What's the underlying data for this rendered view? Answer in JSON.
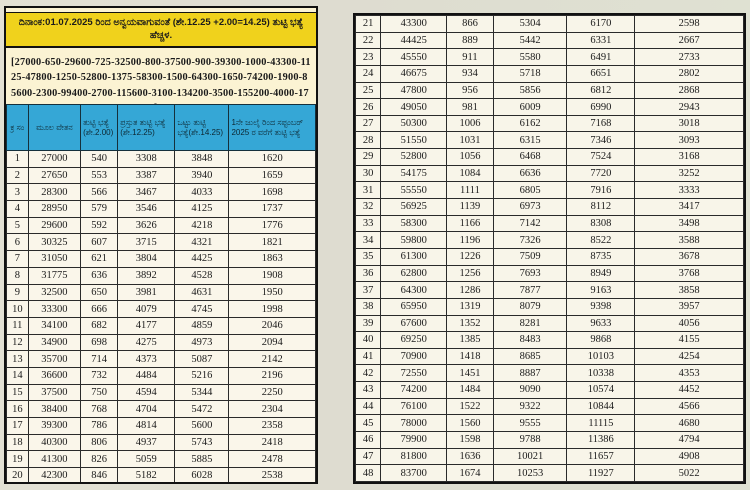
{
  "header": {
    "title": "ದಿನಾಂಕ:01.07.2025 ರಿಂದ ಅನ್ವಯವಾಗುವಂತೆ (ಶೇ.12.25 +2.00=14.25) ತುಟ್ಟಿ ಭತ್ಯೆ ಹೆಚ್ಚಳ.",
    "pay_scale": "[27000-650-29600-725-32500-800-37500-900-39300-1000-43300-1125-47800-1250-52800-1375-58300-1500-64300-1650-74200-1900-85600-2300-99400-2700-115600-3100-134200-3500-155200-4000-179200-4500-206200-5000-241200]"
  },
  "table": {
    "columns": [
      "ಕ್ರ ಸಂ",
      "ಮೂಲ ವೇತನ",
      "ತುಟ್ಟಿ ಭತ್ಯೆ (ಶೇ.2.00)",
      "ಪ್ರಸ್ತುತ ತುಟ್ಟಿ ಭತ್ಯೆ (ಶೇ.12.25)",
      "ಒಟ್ಟು ತುಟ್ಟಿ ಭತ್ಯೆ(ಶೇ.14.25)",
      "1ನೇ ಜುಲೈ ರಿಂದ ಸಪ್ಟಂಬರ್ 2025 ರ ವರೆಗೆ ತುಟ್ಟಿ ಭತ್ಯೆ"
    ],
    "rows": [
      [
        "1",
        "27000",
        "540",
        "3308",
        "3848",
        "1620"
      ],
      [
        "2",
        "27650",
        "553",
        "3387",
        "3940",
        "1659"
      ],
      [
        "3",
        "28300",
        "566",
        "3467",
        "4033",
        "1698"
      ],
      [
        "4",
        "28950",
        "579",
        "3546",
        "4125",
        "1737"
      ],
      [
        "5",
        "29600",
        "592",
        "3626",
        "4218",
        "1776"
      ],
      [
        "6",
        "30325",
        "607",
        "3715",
        "4321",
        "1821"
      ],
      [
        "7",
        "31050",
        "621",
        "3804",
        "4425",
        "1863"
      ],
      [
        "8",
        "31775",
        "636",
        "3892",
        "4528",
        "1908"
      ],
      [
        "9",
        "32500",
        "650",
        "3981",
        "4631",
        "1950"
      ],
      [
        "10",
        "33300",
        "666",
        "4079",
        "4745",
        "1998"
      ],
      [
        "11",
        "34100",
        "682",
        "4177",
        "4859",
        "2046"
      ],
      [
        "12",
        "34900",
        "698",
        "4275",
        "4973",
        "2094"
      ],
      [
        "13",
        "35700",
        "714",
        "4373",
        "5087",
        "2142"
      ],
      [
        "14",
        "36600",
        "732",
        "4484",
        "5216",
        "2196"
      ],
      [
        "15",
        "37500",
        "750",
        "4594",
        "5344",
        "2250"
      ],
      [
        "16",
        "38400",
        "768",
        "4704",
        "5472",
        "2304"
      ],
      [
        "17",
        "39300",
        "786",
        "4814",
        "5600",
        "2358"
      ],
      [
        "18",
        "40300",
        "806",
        "4937",
        "5743",
        "2418"
      ],
      [
        "19",
        "41300",
        "826",
        "5059",
        "5885",
        "2478"
      ],
      [
        "20",
        "42300",
        "846",
        "5182",
        "6028",
        "2538"
      ],
      [
        "21",
        "43300",
        "866",
        "5304",
        "6170",
        "2598"
      ],
      [
        "22",
        "44425",
        "889",
        "5442",
        "6331",
        "2667"
      ],
      [
        "23",
        "45550",
        "911",
        "5580",
        "6491",
        "2733"
      ],
      [
        "24",
        "46675",
        "934",
        "5718",
        "6651",
        "2802"
      ],
      [
        "25",
        "47800",
        "956",
        "5856",
        "6812",
        "2868"
      ],
      [
        "26",
        "49050",
        "981",
        "6009",
        "6990",
        "2943"
      ],
      [
        "27",
        "50300",
        "1006",
        "6162",
        "7168",
        "3018"
      ],
      [
        "28",
        "51550",
        "1031",
        "6315",
        "7346",
        "3093"
      ],
      [
        "29",
        "52800",
        "1056",
        "6468",
        "7524",
        "3168"
      ],
      [
        "30",
        "54175",
        "1084",
        "6636",
        "7720",
        "3252"
      ],
      [
        "31",
        "55550",
        "1111",
        "6805",
        "7916",
        "3333"
      ],
      [
        "32",
        "56925",
        "1139",
        "6973",
        "8112",
        "3417"
      ],
      [
        "33",
        "58300",
        "1166",
        "7142",
        "8308",
        "3498"
      ],
      [
        "34",
        "59800",
        "1196",
        "7326",
        "8522",
        "3588"
      ],
      [
        "35",
        "61300",
        "1226",
        "7509",
        "8735",
        "3678"
      ],
      [
        "36",
        "62800",
        "1256",
        "7693",
        "8949",
        "3768"
      ],
      [
        "37",
        "64300",
        "1286",
        "7877",
        "9163",
        "3858"
      ],
      [
        "38",
        "65950",
        "1319",
        "8079",
        "9398",
        "3957"
      ],
      [
        "39",
        "67600",
        "1352",
        "8281",
        "9633",
        "4056"
      ],
      [
        "40",
        "69250",
        "1385",
        "8483",
        "9868",
        "4155"
      ],
      [
        "41",
        "70900",
        "1418",
        "8685",
        "10103",
        "4254"
      ],
      [
        "42",
        "72550",
        "1451",
        "8887",
        "10338",
        "4353"
      ],
      [
        "43",
        "74200",
        "1484",
        "9090",
        "10574",
        "4452"
      ],
      [
        "44",
        "76100",
        "1522",
        "9322",
        "10844",
        "4566"
      ],
      [
        "45",
        "78000",
        "1560",
        "9555",
        "11115",
        "4680"
      ],
      [
        "46",
        "79900",
        "1598",
        "9788",
        "11386",
        "4794"
      ],
      [
        "47",
        "81800",
        "1636",
        "10021",
        "11657",
        "4908"
      ],
      [
        "48",
        "83700",
        "1674",
        "10253",
        "11927",
        "5022"
      ]
    ],
    "left_row_count": 20
  },
  "colors": {
    "band-yellow": "#f0d21c",
    "band-blue": "#35a7d6",
    "card-bg": "#fbf3d3",
    "cell-bg": "#f8f5e9",
    "paper": "#dedcd0",
    "ink": "#1b1b1b"
  }
}
